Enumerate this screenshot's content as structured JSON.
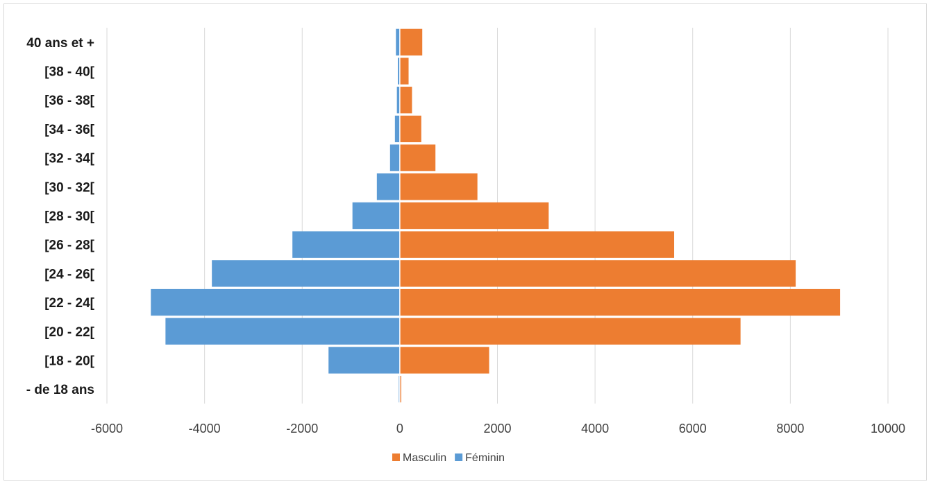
{
  "chart_data": {
    "type": "bar",
    "orientation": "horizontal",
    "stacked": true,
    "categories": [
      "- de 18 ans",
      "[18 - 20[",
      "[20 - 22[",
      "[22 - 24[",
      "[24 - 26[",
      "[26 - 28[",
      "[28 - 30[",
      "[30 - 32[",
      "[32 - 34[",
      "[34 - 36[",
      "[36 - 38[",
      "[38 - 40[",
      "40 ans et +"
    ],
    "series": [
      {
        "name": "Masculin",
        "color": "#ed7d31",
        "values": [
          30,
          1830,
          6980,
          9020,
          8110,
          5620,
          3050,
          1590,
          730,
          440,
          250,
          180,
          460
        ]
      },
      {
        "name": "Féminin",
        "color": "#5b9bd5",
        "values": [
          -20,
          -1460,
          -4800,
          -5100,
          -3850,
          -2200,
          -970,
          -470,
          -200,
          -100,
          -60,
          -40,
          -80
        ]
      }
    ],
    "xlim": [
      -6000,
      10000
    ],
    "xticks": [
      "-6000",
      "-4000",
      "-2000",
      "0",
      "2000",
      "4000",
      "6000",
      "8000",
      "10000"
    ],
    "xtick_values": [
      -6000,
      -4000,
      -2000,
      0,
      2000,
      4000,
      6000,
      8000,
      10000
    ],
    "grid": true,
    "legend_position": "bottom",
    "title": "",
    "xlabel": "",
    "ylabel": ""
  }
}
